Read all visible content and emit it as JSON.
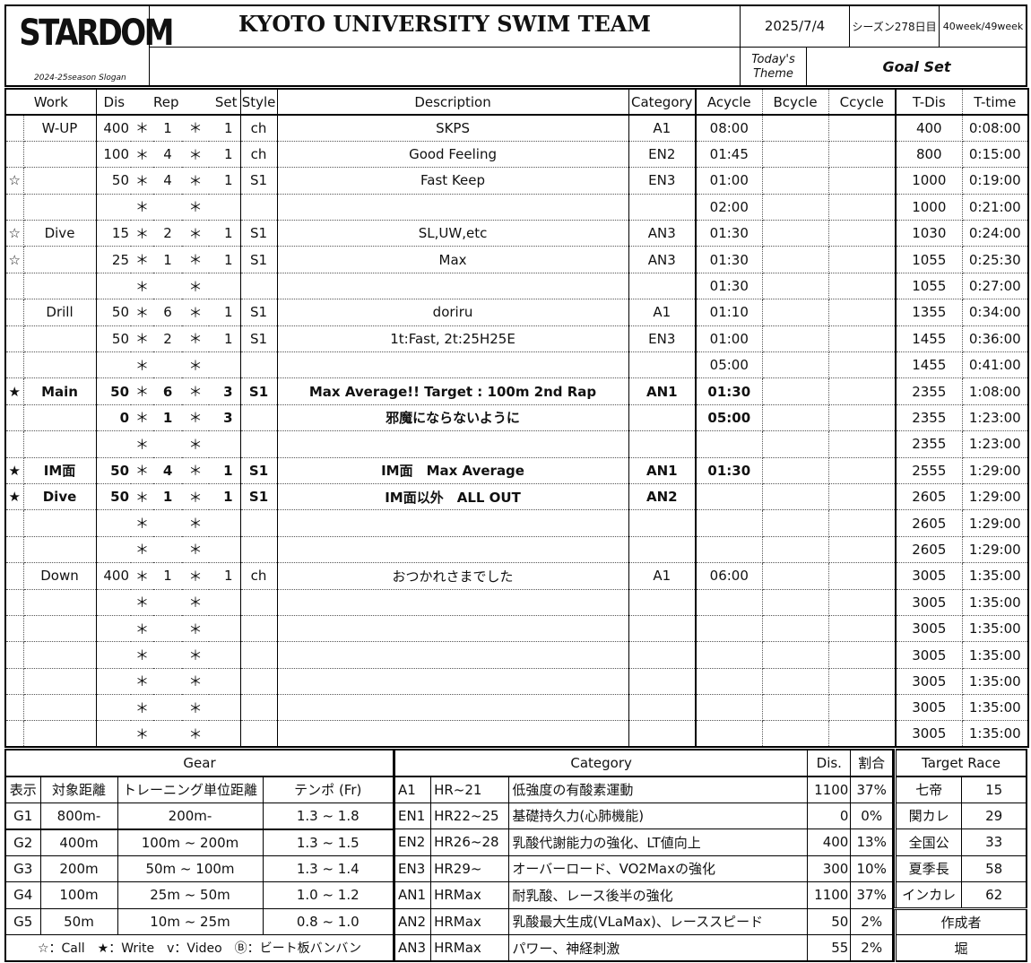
{
  "header": {
    "logo": "STARDOM",
    "slogan": "2024-25season Slogan",
    "title": "KYOTO UNIVERSITY SWIM TEAM",
    "date": "2025/7/4",
    "season_day": "シーズン278日目",
    "week": "40week/49week",
    "theme_label": "Today's Theme",
    "theme": "Goal Set",
    "slogan_value": ""
  },
  "columns": [
    "Work",
    "Dis",
    "Rep",
    "Set",
    "Style",
    "Description",
    "Category",
    "Acycle",
    "Bcycle",
    "Ccycle",
    "T-Dis",
    "T-time"
  ],
  "rows": [
    {
      "mark": "",
      "work": "W-UP",
      "dis": "400",
      "rep": "1",
      "set": "1",
      "style": "ch",
      "desc": "SKPS",
      "cat": "A1",
      "a": "08:00",
      "b": "",
      "c": "",
      "tdis": "400",
      "ttime": "0:08:00",
      "bold": false
    },
    {
      "mark": "",
      "work": "",
      "dis": "100",
      "rep": "4",
      "set": "1",
      "style": "ch",
      "desc": "Good Feeling",
      "cat": "EN2",
      "a": "01:45",
      "b": "",
      "c": "",
      "tdis": "800",
      "ttime": "0:15:00",
      "bold": false
    },
    {
      "mark": "☆",
      "work": "",
      "dis": "50",
      "rep": "4",
      "set": "1",
      "style": "S1",
      "desc": "Fast Keep",
      "cat": "EN3",
      "a": "01:00",
      "b": "",
      "c": "",
      "tdis": "1000",
      "ttime": "0:19:00",
      "bold": false
    },
    {
      "mark": "",
      "work": "",
      "dis": "",
      "rep": "",
      "set": "",
      "style": "",
      "desc": "",
      "cat": "",
      "a": "02:00",
      "b": "",
      "c": "",
      "tdis": "1000",
      "ttime": "0:21:00",
      "bold": false
    },
    {
      "mark": "☆",
      "work": "Dive",
      "dis": "15",
      "rep": "2",
      "set": "1",
      "style": "S1",
      "desc": "SL,UW,etc",
      "cat": "AN3",
      "a": "01:30",
      "b": "",
      "c": "",
      "tdis": "1030",
      "ttime": "0:24:00",
      "bold": false
    },
    {
      "mark": "☆",
      "work": "",
      "dis": "25",
      "rep": "1",
      "set": "1",
      "style": "S1",
      "desc": "Max",
      "cat": "AN3",
      "a": "01:30",
      "b": "",
      "c": "",
      "tdis": "1055",
      "ttime": "0:25:30",
      "bold": false
    },
    {
      "mark": "",
      "work": "",
      "dis": "",
      "rep": "",
      "set": "",
      "style": "",
      "desc": "",
      "cat": "",
      "a": "01:30",
      "b": "",
      "c": "",
      "tdis": "1055",
      "ttime": "0:27:00",
      "bold": false
    },
    {
      "mark": "",
      "work": "Drill",
      "dis": "50",
      "rep": "6",
      "set": "1",
      "style": "S1",
      "desc": "doriru",
      "cat": "A1",
      "a": "01:10",
      "b": "",
      "c": "",
      "tdis": "1355",
      "ttime": "0:34:00",
      "bold": false
    },
    {
      "mark": "",
      "work": "",
      "dis": "50",
      "rep": "2",
      "set": "1",
      "style": "S1",
      "desc": "1t:Fast, 2t:25H25E",
      "cat": "EN3",
      "a": "01:00",
      "b": "",
      "c": "",
      "tdis": "1455",
      "ttime": "0:36:00",
      "bold": false
    },
    {
      "mark": "",
      "work": "",
      "dis": "",
      "rep": "",
      "set": "",
      "style": "",
      "desc": "",
      "cat": "",
      "a": "05:00",
      "b": "",
      "c": "",
      "tdis": "1455",
      "ttime": "0:41:00",
      "bold": false
    },
    {
      "mark": "★",
      "work": "Main",
      "dis": "50",
      "rep": "6",
      "set": "3",
      "style": "S1",
      "desc": "Max Average!! Target : 100m 2nd Rap",
      "cat": "AN1",
      "a": "01:30",
      "b": "",
      "c": "",
      "tdis": "2355",
      "ttime": "1:08:00",
      "bold": true
    },
    {
      "mark": "",
      "work": "",
      "dis": "0",
      "rep": "1",
      "set": "3",
      "style": "",
      "desc": "邪魔にならないように",
      "cat": "",
      "a": "05:00",
      "b": "",
      "c": "",
      "tdis": "2355",
      "ttime": "1:23:00",
      "bold": true
    },
    {
      "mark": "",
      "work": "",
      "dis": "",
      "rep": "",
      "set": "",
      "style": "",
      "desc": "",
      "cat": "",
      "a": "",
      "b": "",
      "c": "",
      "tdis": "2355",
      "ttime": "1:23:00",
      "bold": false
    },
    {
      "mark": "★",
      "work": "IM面",
      "dis": "50",
      "rep": "4",
      "set": "1",
      "style": "S1",
      "desc": "IM面　Max Average",
      "cat": "AN1",
      "a": "01:30",
      "b": "",
      "c": "",
      "tdis": "2555",
      "ttime": "1:29:00",
      "bold": true
    },
    {
      "mark": "★",
      "work": "Dive",
      "dis": "50",
      "rep": "1",
      "set": "1",
      "style": "S1",
      "desc": "IM面以外　ALL OUT",
      "cat": "AN2",
      "a": "",
      "b": "",
      "c": "",
      "tdis": "2605",
      "ttime": "1:29:00",
      "bold": true
    },
    {
      "mark": "",
      "work": "",
      "dis": "",
      "rep": "",
      "set": "",
      "style": "",
      "desc": "",
      "cat": "",
      "a": "",
      "b": "",
      "c": "",
      "tdis": "2605",
      "ttime": "1:29:00",
      "bold": false
    },
    {
      "mark": "",
      "work": "",
      "dis": "",
      "rep": "",
      "set": "",
      "style": "",
      "desc": "",
      "cat": "",
      "a": "",
      "b": "",
      "c": "",
      "tdis": "2605",
      "ttime": "1:29:00",
      "bold": false
    },
    {
      "mark": "",
      "work": "Down",
      "dis": "400",
      "rep": "1",
      "set": "1",
      "style": "ch",
      "desc": "おつかれさまでした",
      "cat": "A1",
      "a": "06:00",
      "b": "",
      "c": "",
      "tdis": "3005",
      "ttime": "1:35:00",
      "bold": false
    },
    {
      "mark": "",
      "work": "",
      "dis": "",
      "rep": "",
      "set": "",
      "style": "",
      "desc": "",
      "cat": "",
      "a": "",
      "b": "",
      "c": "",
      "tdis": "3005",
      "ttime": "1:35:00",
      "bold": false
    },
    {
      "mark": "",
      "work": "",
      "dis": "",
      "rep": "",
      "set": "",
      "style": "",
      "desc": "",
      "cat": "",
      "a": "",
      "b": "",
      "c": "",
      "tdis": "3005",
      "ttime": "1:35:00",
      "bold": false
    },
    {
      "mark": "",
      "work": "",
      "dis": "",
      "rep": "",
      "set": "",
      "style": "",
      "desc": "",
      "cat": "",
      "a": "",
      "b": "",
      "c": "",
      "tdis": "3005",
      "ttime": "1:35:00",
      "bold": false
    },
    {
      "mark": "",
      "work": "",
      "dis": "",
      "rep": "",
      "set": "",
      "style": "",
      "desc": "",
      "cat": "",
      "a": "",
      "b": "",
      "c": "",
      "tdis": "3005",
      "ttime": "1:35:00",
      "bold": false
    },
    {
      "mark": "",
      "work": "",
      "dis": "",
      "rep": "",
      "set": "",
      "style": "",
      "desc": "",
      "cat": "",
      "a": "",
      "b": "",
      "c": "",
      "tdis": "3005",
      "ttime": "1:35:00",
      "bold": false
    },
    {
      "mark": "",
      "work": "",
      "dis": "",
      "rep": "",
      "set": "",
      "style": "",
      "desc": "",
      "cat": "",
      "a": "",
      "b": "",
      "c": "",
      "tdis": "3005",
      "ttime": "1:35:00",
      "bold": false
    }
  ],
  "separator": "＊",
  "gear": {
    "title": "Gear",
    "headers": [
      "表示",
      "対象距離",
      "トレーニング単位距離",
      "テンポ (Fr)"
    ],
    "rows": [
      [
        "G1",
        "800m-",
        "200m-",
        "1.3 ~ 1.8"
      ],
      [
        "G2",
        "400m",
        "100m ~ 200m",
        "1.3 ~ 1.5"
      ],
      [
        "G3",
        "200m",
        "50m ~ 100m",
        "1.3 ~ 1.4"
      ],
      [
        "G4",
        "100m",
        "25m ~ 50m",
        "1.0 ~ 1.2"
      ],
      [
        "G5",
        "50m",
        "10m ~ 25m",
        "0.8 ~ 1.0"
      ]
    ],
    "legend": "☆：Call　★：Write　v：Video　Ⓑ：ビート板バンバン"
  },
  "category": {
    "title": "Category",
    "dis_label": "Dis.",
    "ratio_label": "割合",
    "rows": [
      [
        "A1",
        "HR~21",
        "低強度の有酸素運動",
        "1100",
        "37%"
      ],
      [
        "EN1",
        "HR22~25",
        "基礎持久力(心肺機能)",
        "0",
        "0%"
      ],
      [
        "EN2",
        "HR26~28",
        "乳酸代謝能力の強化、LT値向上",
        "400",
        "13%"
      ],
      [
        "EN3",
        "HR29~",
        "オーバーロード、VO2Maxの強化",
        "300",
        "10%"
      ],
      [
        "AN1",
        "HRMax",
        "耐乳酸、レース後半の強化",
        "1100",
        "37%"
      ],
      [
        "AN2",
        "HRMax",
        "乳酸最大生成(VLaMax)、レーススピード",
        "50",
        "2%"
      ],
      [
        "AN3",
        "HRMax",
        "パワー、神経刺激",
        "55",
        "2%"
      ]
    ]
  },
  "target_race": {
    "title": "Target Race",
    "rows": [
      [
        "七帝",
        "15"
      ],
      [
        "関カレ",
        "29"
      ],
      [
        "全国公",
        "33"
      ],
      [
        "夏季長",
        "58"
      ],
      [
        "インカレ",
        "62"
      ]
    ],
    "author_label": "作成者",
    "author": "堀"
  }
}
